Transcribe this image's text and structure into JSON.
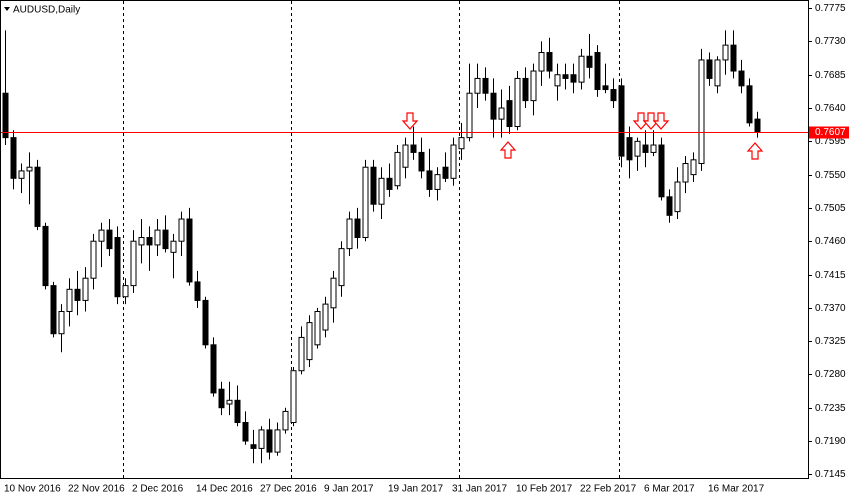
{
  "chart_data": {
    "type": "candlestick",
    "title": "AUDUSD,Daily",
    "categories": [
      "10 Nov 2016",
      null,
      null,
      null,
      null,
      null,
      null,
      null,
      "22 Nov 2016",
      null,
      null,
      null,
      null,
      null,
      null,
      null,
      "2 Dec 2016",
      null,
      null,
      null,
      null,
      null,
      null,
      null,
      "14 Dec 2016",
      null,
      null,
      null,
      null,
      null,
      null,
      null,
      "27 Dec 2016",
      null,
      null,
      null,
      null,
      null,
      null,
      null,
      "9 Jan 2017",
      null,
      null,
      null,
      null,
      null,
      null,
      null,
      "19 Jan 2017",
      null,
      null,
      null,
      null,
      null,
      null,
      null,
      "31 Jan 2017",
      null,
      null,
      null,
      null,
      null,
      null,
      null,
      "10 Feb 2017",
      null,
      null,
      null,
      null,
      null,
      null,
      null,
      "22 Feb 2017",
      null,
      null,
      null,
      null,
      null,
      null,
      null,
      "6 Mar 2017",
      null,
      null,
      null,
      null,
      null,
      null,
      null,
      "16 Mar 2017",
      null,
      null,
      null,
      null,
      null,
      null
    ],
    "open": [
      0.766,
      0.76,
      0.7545,
      0.7555,
      0.756,
      0.748,
      0.74,
      0.7335,
      0.7365,
      0.7395,
      0.738,
      0.741,
      0.746,
      0.7475,
      0.7465,
      0.7385,
      0.74,
      0.7455,
      0.7465,
      0.7455,
      0.7475,
      0.7445,
      0.746,
      0.749,
      0.7405,
      0.738,
      0.732,
      0.726,
      0.724,
      0.7245,
      0.7215,
      0.7185,
      0.718,
      0.7205,
      0.7175,
      0.7205,
      0.7215,
      0.7285,
      0.73,
      0.732,
      0.734,
      0.737,
      0.74,
      0.745,
      0.749,
      0.7465,
      0.756,
      0.751,
      0.7545,
      0.7535,
      0.756,
      0.759,
      0.758,
      0.7555,
      0.753,
      0.756,
      0.7545,
      0.7585,
      0.76,
      0.766,
      0.768,
      0.766,
      0.7625,
      0.765,
      0.7615,
      0.768,
      0.765,
      0.769,
      0.7715,
      0.767,
      0.7685,
      0.7685,
      0.7675,
      0.771,
      0.7715,
      0.767,
      0.7665,
      0.767,
      0.76,
      0.7575,
      0.759,
      0.758,
      0.759,
      0.752,
      0.75,
      0.754,
      0.755,
      0.7565,
      0.7705,
      0.767,
      0.7705,
      0.7725,
      0.769,
      0.767,
      0.7625
    ],
    "high": [
      0.7745,
      0.761,
      0.7565,
      0.758,
      0.757,
      0.7485,
      0.7405,
      0.7375,
      0.741,
      0.742,
      0.7425,
      0.747,
      0.7485,
      0.749,
      0.748,
      0.741,
      0.7475,
      0.749,
      0.748,
      0.749,
      0.7495,
      0.747,
      0.75,
      0.7505,
      0.742,
      0.7385,
      0.733,
      0.727,
      0.727,
      0.7265,
      0.723,
      0.7205,
      0.721,
      0.722,
      0.7215,
      0.7235,
      0.729,
      0.7345,
      0.736,
      0.737,
      0.7385,
      0.742,
      0.746,
      0.75,
      0.7505,
      0.757,
      0.757,
      0.756,
      0.7565,
      0.759,
      0.76,
      0.7615,
      0.76,
      0.7585,
      0.756,
      0.758,
      0.76,
      0.762,
      0.77,
      0.77,
      0.7695,
      0.768,
      0.7665,
      0.767,
      0.769,
      0.7695,
      0.77,
      0.773,
      0.7735,
      0.77,
      0.77,
      0.77,
      0.772,
      0.774,
      0.7725,
      0.77,
      0.768,
      0.768,
      0.7615,
      0.76,
      0.761,
      0.761,
      0.76,
      0.753,
      0.756,
      0.7575,
      0.758,
      0.772,
      0.7715,
      0.771,
      0.7745,
      0.7745,
      0.7705,
      0.768,
      0.7635
    ],
    "low": [
      0.759,
      0.753,
      0.7525,
      0.751,
      0.7475,
      0.7395,
      0.733,
      0.731,
      0.7345,
      0.736,
      0.7365,
      0.7395,
      0.7425,
      0.744,
      0.7375,
      0.7375,
      0.739,
      0.743,
      0.742,
      0.744,
      0.7445,
      0.741,
      0.744,
      0.74,
      0.737,
      0.7315,
      0.725,
      0.7225,
      0.7225,
      0.721,
      0.7185,
      0.716,
      0.716,
      0.7165,
      0.717,
      0.72,
      0.721,
      0.728,
      0.729,
      0.7315,
      0.733,
      0.735,
      0.7385,
      0.744,
      0.745,
      0.746,
      0.75,
      0.749,
      0.752,
      0.753,
      0.7545,
      0.757,
      0.7545,
      0.752,
      0.7515,
      0.754,
      0.7535,
      0.757,
      0.7595,
      0.764,
      0.765,
      0.76,
      0.76,
      0.7605,
      0.761,
      0.764,
      0.763,
      0.767,
      0.768,
      0.765,
      0.7665,
      0.766,
      0.7665,
      0.768,
      0.7655,
      0.766,
      0.764,
      0.756,
      0.7545,
      0.7555,
      0.756,
      0.7575,
      0.7515,
      0.7485,
      0.749,
      0.7525,
      0.754,
      0.7555,
      0.767,
      0.766,
      0.7685,
      0.768,
      0.766,
      0.7615,
      0.76
    ],
    "close": [
      0.76,
      0.7545,
      0.7555,
      0.756,
      0.748,
      0.74,
      0.7335,
      0.7365,
      0.7395,
      0.738,
      0.741,
      0.746,
      0.7475,
      0.745,
      0.7385,
      0.74,
      0.746,
      0.7465,
      0.7455,
      0.7475,
      0.745,
      0.746,
      0.749,
      0.7405,
      0.738,
      0.732,
      0.7255,
      0.7235,
      0.7245,
      0.7215,
      0.719,
      0.718,
      0.7205,
      0.7175,
      0.7205,
      0.723,
      0.7285,
      0.733,
      0.735,
      0.7365,
      0.7375,
      0.741,
      0.745,
      0.749,
      0.7465,
      0.756,
      0.751,
      0.7545,
      0.753,
      0.758,
      0.759,
      0.758,
      0.7555,
      0.753,
      0.755,
      0.7545,
      0.759,
      0.76,
      0.766,
      0.768,
      0.766,
      0.7625,
      0.764,
      0.7615,
      0.768,
      0.765,
      0.769,
      0.7715,
      0.769,
      0.7685,
      0.768,
      0.7675,
      0.771,
      0.7695,
      0.7665,
      0.7665,
      0.765,
      0.7575,
      0.757,
      0.7595,
      0.758,
      0.759,
      0.752,
      0.7495,
      0.754,
      0.7565,
      0.757,
      0.7705,
      0.768,
      0.7705,
      0.7725,
      0.769,
      0.767,
      0.762,
      0.7607
    ],
    "ylim": [
      0.714,
      0.7786
    ],
    "yticks": [
      0.7775,
      {
        "value": 0.773,
        "label": "0.7730"
      },
      0.7685,
      {
        "value": 0.764,
        "label": "0.7640"
      },
      0.7595,
      {
        "value": 0.755,
        "label": "0.7550"
      },
      0.7505,
      {
        "value": 0.746,
        "label": "0.7460"
      },
      0.7415,
      {
        "value": 0.737,
        "label": "0.7370"
      },
      0.7325,
      {
        "value": 0.728,
        "label": "0.7280"
      },
      0.7235,
      {
        "value": 0.719,
        "label": "0.7190"
      },
      0.7145
    ],
    "price_line": 0.7607,
    "price_line_color": "#ff0000",
    "up_color": "#ffffff",
    "down_color": "#000000"
  }
}
